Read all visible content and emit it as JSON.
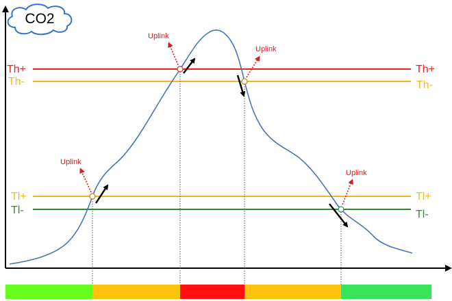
{
  "title": "CO2",
  "uplink_label": "Uplink",
  "thresholds": [
    {
      "key": "th_plus",
      "label": "Th+",
      "color": "#e8231b"
    },
    {
      "key": "th_minus",
      "label": "Th-",
      "color": "#f2b81c"
    },
    {
      "key": "tl_plus",
      "label": "Tl+",
      "color": "#f2b81c"
    },
    {
      "key": "tl_minus",
      "label": "Tl-",
      "color": "#2e8b2e"
    }
  ],
  "crossings": [
    {
      "threshold": "Tl+",
      "direction": "up"
    },
    {
      "threshold": "Th+",
      "direction": "up"
    },
    {
      "threshold": "Th-",
      "direction": "down"
    },
    {
      "threshold": "Tl-",
      "direction": "down"
    }
  ],
  "status_bar": [
    {
      "state": "low",
      "color": "#66ff1f"
    },
    {
      "state": "medium",
      "color": "#ffc20e"
    },
    {
      "state": "high",
      "color": "#ff0f0f"
    },
    {
      "state": "medium",
      "color": "#ffc20e"
    },
    {
      "state": "low",
      "color": "#39e35a"
    }
  ],
  "colors": {
    "curve": "#4a74b6",
    "axis": "#000000",
    "uplink": "#d11f1f",
    "cloud_stroke": "#3b6fd1"
  }
}
